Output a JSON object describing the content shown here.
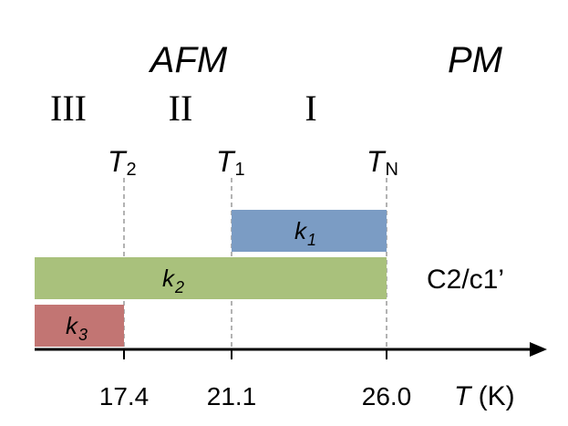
{
  "phases": {
    "afm": "AFM",
    "pm": "PM"
  },
  "regions": [
    "III",
    "II",
    "I"
  ],
  "transitions": [
    {
      "symbol": "T",
      "sub": "2",
      "value": "17.4"
    },
    {
      "symbol": "T",
      "sub": "1",
      "value": "21.1"
    },
    {
      "symbol": "T",
      "sub": "N",
      "value": "26.0"
    }
  ],
  "bars": [
    {
      "label": "k",
      "sub": "1",
      "from": 21.1,
      "to": 26.0,
      "color": "#7b9cc4"
    },
    {
      "label": "k",
      "sub": "2",
      "from": 15.3,
      "to": 26.0,
      "color": "#a9c17c"
    },
    {
      "label": "k",
      "sub": "3",
      "from": 15.3,
      "to": 17.4,
      "color": "#c27573"
    }
  ],
  "space_group": "C2/c1’",
  "axis": {
    "symbol": "T",
    "unit": " (K)"
  },
  "colors": {
    "axis": "#000000",
    "dashed": "#808080"
  }
}
